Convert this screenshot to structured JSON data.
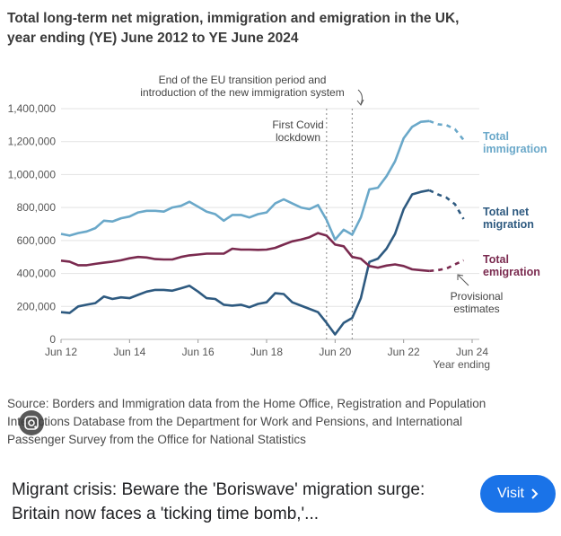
{
  "chart_data": {
    "type": "line",
    "title": "Total long-term net migration, immigration and emigration in the UK,",
    "subtitle": "year ending (YE) June 2012 to YE June 2024",
    "xlabel": "Year ending",
    "x_ticks": [
      "Jun 12",
      "Jun 14",
      "Jun 16",
      "Jun 18",
      "Jun 20",
      "Jun 22",
      "Jun 24"
    ],
    "y_ticks": [
      "0",
      "200,000",
      "400,000",
      "600,000",
      "800,000",
      "1,000,000",
      "1,200,000",
      "1,400,000"
    ],
    "ylim": [
      0,
      1400000
    ],
    "xlim": [
      2012.5,
      2024.5
    ],
    "grid": true,
    "series": [
      {
        "name": "Total immigration",
        "color": "#6aa8c9",
        "x": [
          2012.5,
          2012.75,
          2013.0,
          2013.25,
          2013.5,
          2013.75,
          2014.0,
          2014.25,
          2014.5,
          2014.75,
          2015.0,
          2015.25,
          2015.5,
          2015.75,
          2016.0,
          2016.25,
          2016.5,
          2016.75,
          2017.0,
          2017.25,
          2017.5,
          2017.75,
          2018.0,
          2018.25,
          2018.5,
          2018.75,
          2019.0,
          2019.25,
          2019.5,
          2019.75,
          2020.0,
          2020.25,
          2020.5,
          2020.75,
          2021.0,
          2021.25,
          2021.5,
          2021.75,
          2022.0,
          2022.25,
          2022.5,
          2022.75,
          2023.0,
          2023.25
        ],
        "values": [
          640000,
          630000,
          645000,
          655000,
          675000,
          720000,
          715000,
          735000,
          745000,
          770000,
          780000,
          780000,
          775000,
          800000,
          810000,
          835000,
          805000,
          775000,
          760000,
          720000,
          755000,
          755000,
          740000,
          760000,
          770000,
          825000,
          850000,
          825000,
          800000,
          790000,
          815000,
          725000,
          605000,
          665000,
          635000,
          740000,
          910000,
          920000,
          990000,
          1080000,
          1220000,
          1290000,
          1320000,
          1325000
        ]
      },
      {
        "name": "Total net migration",
        "color": "#2e5a80",
        "x": [
          2012.5,
          2012.75,
          2013.0,
          2013.25,
          2013.5,
          2013.75,
          2014.0,
          2014.25,
          2014.5,
          2014.75,
          2015.0,
          2015.25,
          2015.5,
          2015.75,
          2016.0,
          2016.25,
          2016.5,
          2016.75,
          2017.0,
          2017.25,
          2017.5,
          2017.75,
          2018.0,
          2018.25,
          2018.5,
          2018.75,
          2019.0,
          2019.25,
          2019.5,
          2019.75,
          2020.0,
          2020.25,
          2020.5,
          2020.75,
          2021.0,
          2021.25,
          2021.5,
          2021.75,
          2022.0,
          2022.25,
          2022.5,
          2022.75,
          2023.0,
          2023.25
        ],
        "values": [
          165000,
          160000,
          200000,
          210000,
          220000,
          260000,
          245000,
          255000,
          250000,
          270000,
          290000,
          300000,
          300000,
          295000,
          310000,
          325000,
          290000,
          250000,
          245000,
          210000,
          205000,
          210000,
          195000,
          215000,
          225000,
          280000,
          275000,
          225000,
          205000,
          185000,
          165000,
          100000,
          30000,
          100000,
          130000,
          250000,
          470000,
          490000,
          550000,
          640000,
          790000,
          880000,
          895000,
          905000
        ]
      },
      {
        "name": "Total emigration",
        "color": "#7a2a4f",
        "x": [
          2012.5,
          2012.75,
          2013.0,
          2013.25,
          2013.5,
          2013.75,
          2014.0,
          2014.25,
          2014.5,
          2014.75,
          2015.0,
          2015.25,
          2015.5,
          2015.75,
          2016.0,
          2016.25,
          2016.5,
          2016.75,
          2017.0,
          2017.25,
          2017.5,
          2017.75,
          2018.0,
          2018.25,
          2018.5,
          2018.75,
          2019.0,
          2019.25,
          2019.5,
          2019.75,
          2020.0,
          2020.25,
          2020.5,
          2020.75,
          2021.0,
          2021.25,
          2021.5,
          2021.75,
          2022.0,
          2022.25,
          2022.5,
          2022.75,
          2023.0,
          2023.25
        ],
        "values": [
          478000,
          472000,
          450000,
          450000,
          458000,
          465000,
          472000,
          480000,
          492000,
          500000,
          497000,
          487000,
          485000,
          485000,
          500000,
          510000,
          515000,
          520000,
          520000,
          520000,
          550000,
          545000,
          545000,
          543000,
          545000,
          555000,
          575000,
          595000,
          605000,
          620000,
          645000,
          630000,
          575000,
          565000,
          500000,
          490000,
          445000,
          435000,
          448000,
          455000,
          445000,
          425000,
          420000,
          415000
        ]
      }
    ],
    "provisional": [
      {
        "name": "Total immigration",
        "x": [
          2023.25,
          2023.5,
          2023.75,
          2024.0,
          2024.25
        ],
        "values": [
          1325000,
          1305000,
          1300000,
          1275000,
          1210000
        ]
      },
      {
        "name": "Total net migration",
        "x": [
          2023.25,
          2023.5,
          2023.75,
          2024.0,
          2024.25
        ],
        "values": [
          905000,
          880000,
          860000,
          820000,
          730000
        ]
      },
      {
        "name": "Total emigration",
        "x": [
          2023.25,
          2023.5,
          2023.75,
          2024.0,
          2024.25
        ],
        "values": [
          415000,
          420000,
          430000,
          455000,
          480000
        ]
      }
    ],
    "vlines": [
      2020.25,
      2021.0
    ],
    "annotations": {
      "covid": [
        "First Covid",
        "lockdown"
      ],
      "eu": [
        "End of the EU transition period and",
        "introduction of the new immigration system"
      ],
      "provisional": [
        "Provisional",
        "estimates"
      ]
    },
    "series_labels": {
      "immigration": [
        "Total",
        "immigration"
      ],
      "net": [
        "Total net",
        "migration"
      ],
      "emigration": [
        "Total",
        "emigration"
      ]
    }
  },
  "source_lines": [
    "Source: Borders and Immigration data from the Home Office, Registration and Population",
    "Interactions Database from the Department for Work and Pensions, and International",
    "Passenger Survey from the Office for National Statistics"
  ],
  "lens_icon": "lens-icon",
  "article": {
    "title": "Migrant crisis: Beware the 'Boriswave' migration surge: Britain now faces a 'ticking time bomb,'...",
    "visit_label": "Visit",
    "visit_color": "#1a73e8"
  }
}
